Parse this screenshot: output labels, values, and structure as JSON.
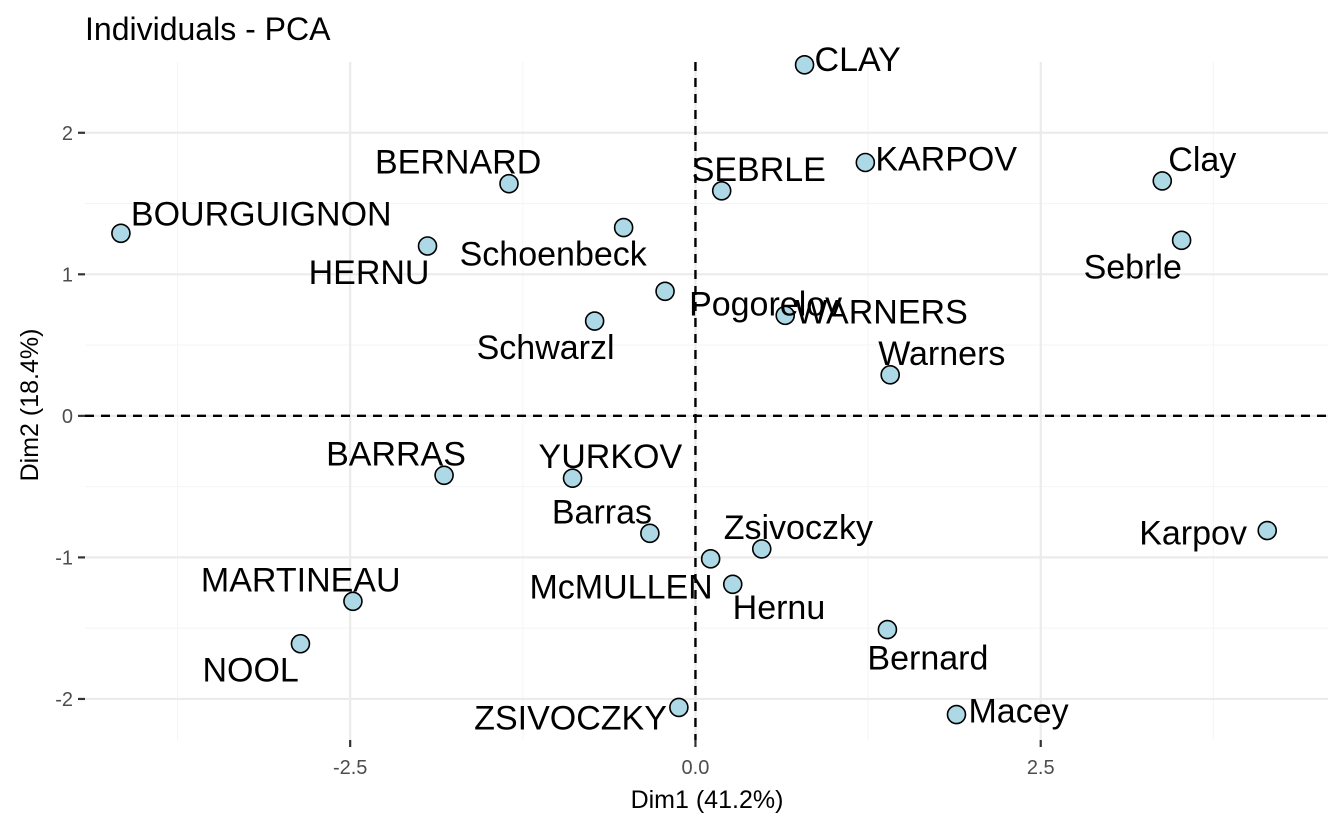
{
  "chart_data": {
    "type": "scatter",
    "title": "Individuals - PCA",
    "xlabel": "Dim1 (41.2%)",
    "ylabel": "Dim2 (18.4%)",
    "xlim": [
      -4.42,
      4.58
    ],
    "ylim": [
      -2.29,
      2.5
    ],
    "x_ticks": [
      -2.5,
      0.0,
      2.5
    ],
    "x_tick_labels": [
      "-2.5",
      "0.0",
      "2.5"
    ],
    "y_ticks": [
      -2,
      -1,
      0,
      1,
      2
    ],
    "y_tick_labels": [
      "-2",
      "-1",
      "0",
      "1",
      "2"
    ],
    "grid": true,
    "reference_lines": {
      "x": 0,
      "y": 0
    },
    "point_fill": "#add8e6",
    "points": [
      {
        "name": "SEBRLE",
        "x": 0.19,
        "y": 1.59
      },
      {
        "name": "CLAY",
        "x": 0.79,
        "y": 2.48
      },
      {
        "name": "KARPOV",
        "x": 1.23,
        "y": 1.79
      },
      {
        "name": "BERNARD",
        "x": -1.35,
        "y": 1.64
      },
      {
        "name": "YURKOV",
        "x": -0.89,
        "y": -0.44
      },
      {
        "name": "WARNERS",
        "x": 0.65,
        "y": 0.71
      },
      {
        "name": "ZSIVOCZKY",
        "x": -0.12,
        "y": -2.06
      },
      {
        "name": "McMULLEN",
        "x": 0.27,
        "y": -1.19
      },
      {
        "name": "MARTINEAU",
        "x": -2.48,
        "y": -1.31
      },
      {
        "name": "HERNU",
        "x": -1.94,
        "y": 1.2
      },
      {
        "name": "BARRAS",
        "x": -1.82,
        "y": -0.42
      },
      {
        "name": "NOOL",
        "x": -2.86,
        "y": -1.61
      },
      {
        "name": "BOURGUIGNON",
        "x": -4.16,
        "y": 1.29
      },
      {
        "name": "Sebrle",
        "x": 3.52,
        "y": 1.24
      },
      {
        "name": "Clay",
        "x": 3.38,
        "y": 1.66
      },
      {
        "name": "Karpov",
        "x": 4.14,
        "y": -0.81
      },
      {
        "name": "Macey",
        "x": 1.89,
        "y": -2.11
      },
      {
        "name": "Warners",
        "x": 1.41,
        "y": 0.29
      },
      {
        "name": "Zsivoczky",
        "x": 0.48,
        "y": -0.94
      },
      {
        "name": "Hernu",
        "x": 0.11,
        "y": -1.01
      },
      {
        "name": "Bernard",
        "x": 1.39,
        "y": -1.51
      },
      {
        "name": "Schwarzl",
        "x": -0.73,
        "y": 0.67
      },
      {
        "name": "Pogorelov",
        "x": -0.22,
        "y": 0.88
      },
      {
        "name": "Schoenbeck",
        "x": -0.52,
        "y": 1.33
      },
      {
        "name": "Barras",
        "x": -0.33,
        "y": -0.83
      }
    ]
  }
}
